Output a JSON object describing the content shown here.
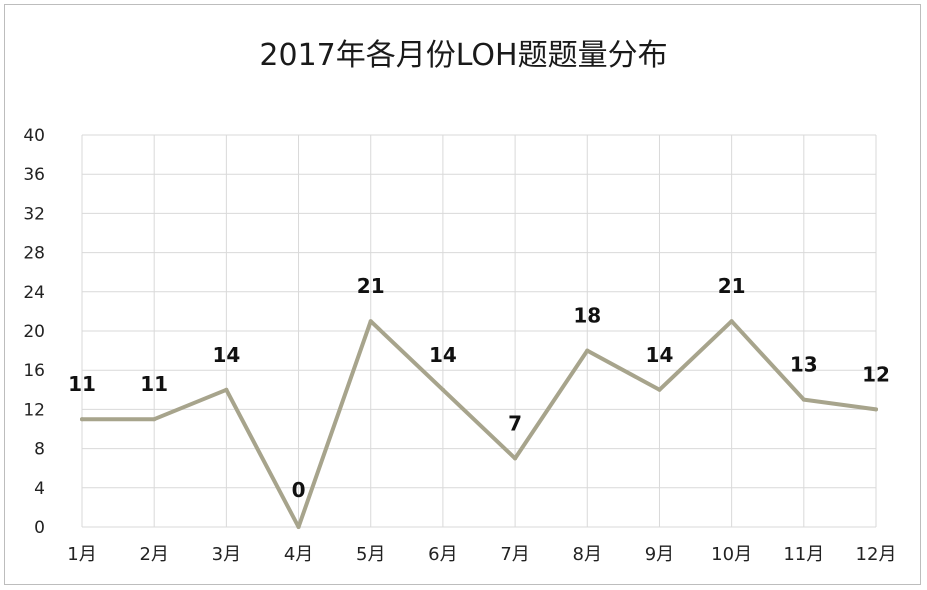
{
  "chart_data": {
    "type": "line",
    "title": "2017年各月份LOH题题量分布",
    "categories": [
      "1月",
      "2月",
      "3月",
      "4月",
      "5月",
      "6月",
      "7月",
      "8月",
      "9月",
      "10月",
      "11月",
      "12月"
    ],
    "series": [
      {
        "values": [
          11,
          11,
          14,
          0,
          21,
          14,
          7,
          18,
          14,
          21,
          13,
          12
        ]
      }
    ],
    "ylim": [
      0,
      40
    ],
    "yticks": [
      0,
      4,
      8,
      12,
      16,
      20,
      24,
      28,
      32,
      36,
      40
    ],
    "grid": true,
    "legend": "none",
    "data_labels": true,
    "line_color": "#a7a48c"
  }
}
